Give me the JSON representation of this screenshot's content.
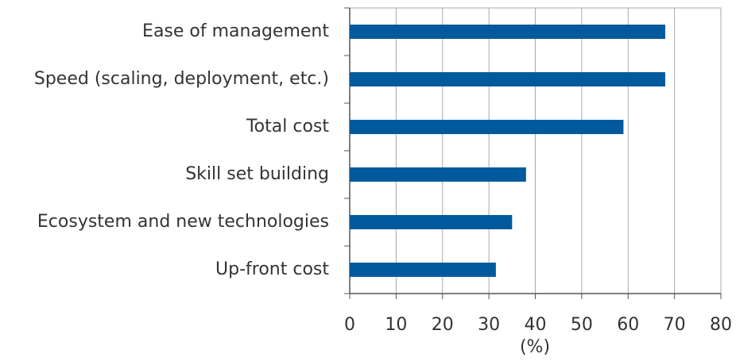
{
  "chart_data": {
    "type": "barh",
    "categories": [
      "Ease of management",
      "Speed (scaling, deployment, etc.)",
      "Total cost",
      "Skill set building",
      "Ecosystem and new technologies",
      "Up-front cost"
    ],
    "values": [
      68,
      68,
      59,
      38,
      35,
      31.5
    ],
    "color": "#005a9c",
    "xlabel": "(%)",
    "xlim": [
      0,
      80
    ],
    "xticks": [
      0,
      10,
      20,
      30,
      40,
      50,
      60,
      70,
      80
    ],
    "grid": true
  }
}
